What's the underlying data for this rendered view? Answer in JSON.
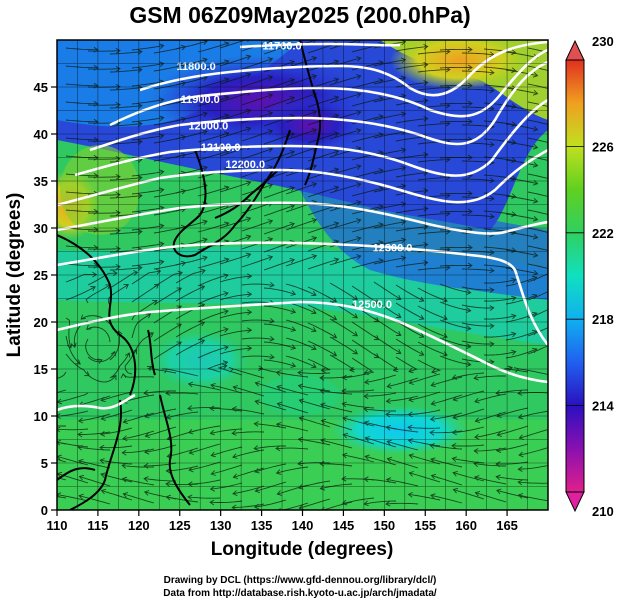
{
  "title": "GSM 06Z09May2025 (200.0hPa)",
  "xlabel": "Longitude (degrees)",
  "ylabel": "Latitude  (degrees)",
  "credits": [
    "Drawing by DCL (https://www.gfd-dennou.org/library/dcl/)",
    "Data from http://database.rish.kyoto-u.ac.jp/arch/jmadata/"
  ],
  "chart_data": {
    "type": "heatmap",
    "variable": "temperature with geopotential height contours and streamlines",
    "x_axis": {
      "label": "Longitude (degrees)",
      "range": [
        110,
        170
      ],
      "ticks": [
        110,
        115,
        120,
        125,
        130,
        135,
        140,
        145,
        150,
        155,
        160,
        165
      ]
    },
    "y_axis": {
      "label": "Latitude  (degrees)",
      "range": [
        0,
        50
      ],
      "ticks": [
        0,
        5,
        10,
        15,
        20,
        25,
        30,
        35,
        40,
        45
      ]
    },
    "colorbar": {
      "range": [
        210,
        230
      ],
      "ticks": [
        210,
        214,
        218,
        222,
        226,
        230
      ]
    },
    "contour_labels": [
      {
        "text": "11700.0",
        "lon": 137.5,
        "lat": 49.0
      },
      {
        "text": "11800.0",
        "lon": 127.0,
        "lat": 46.8
      },
      {
        "text": "11900.0",
        "lon": 127.5,
        "lat": 43.3
      },
      {
        "text": "12000.0",
        "lon": 128.5,
        "lat": 40.5
      },
      {
        "text": "12100.0",
        "lon": 130.0,
        "lat": 38.2
      },
      {
        "text": "12200.0",
        "lon": 133.0,
        "lat": 36.4
      },
      {
        "text": "12300.0",
        "lon": 151.0,
        "lat": 27.5
      },
      {
        "text": "12500.0",
        "lon": 148.5,
        "lat": 21.5
      }
    ],
    "grid": true
  }
}
